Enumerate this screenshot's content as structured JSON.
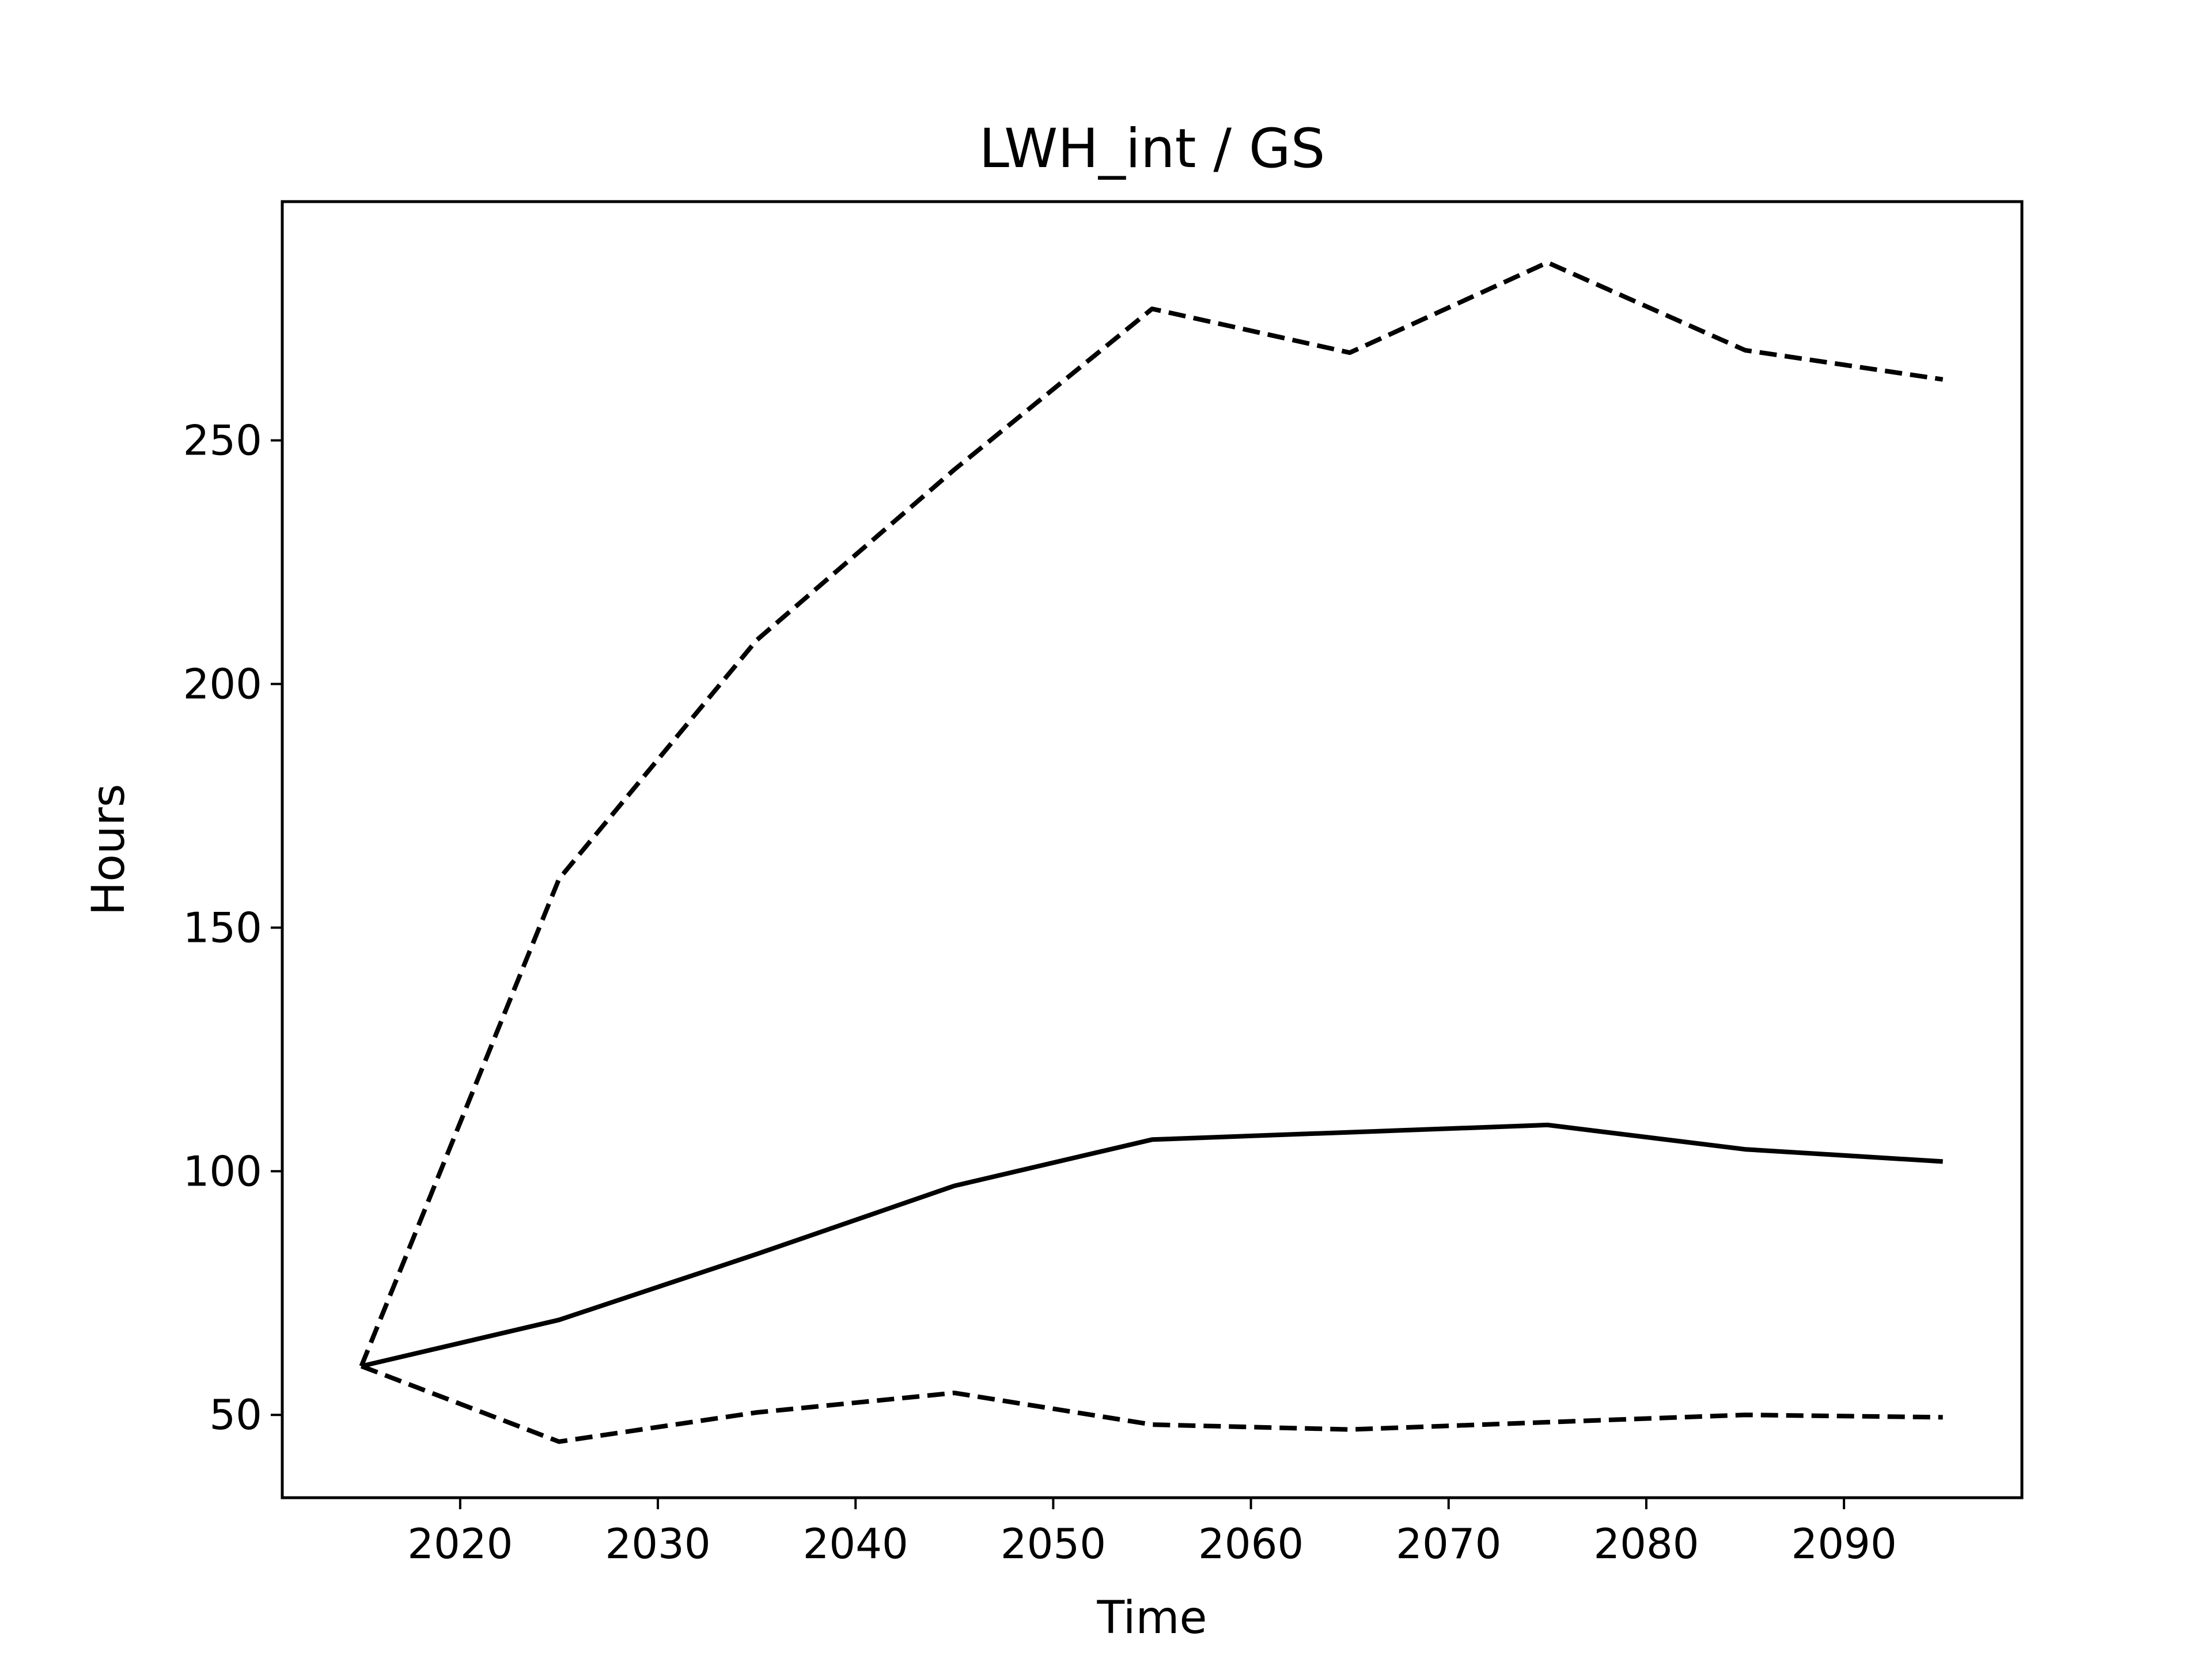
{
  "chart_data": {
    "type": "line",
    "title": "LWH_int / GS",
    "xlabel": "Time",
    "ylabel": "Hours",
    "xlim": [
      2011,
      2099
    ],
    "ylim": [
      33,
      299
    ],
    "xticks": [
      2020,
      2030,
      2040,
      2050,
      2060,
      2070,
      2080,
      2090
    ],
    "yticks": [
      50,
      100,
      150,
      200,
      250
    ],
    "grid": false,
    "legend": "none",
    "x": [
      2015,
      2025,
      2035,
      2045,
      2055,
      2065,
      2075,
      2085,
      2095
    ],
    "series": [
      {
        "style": "solid",
        "color": "#000000",
        "values": [
          60,
          69.5,
          83,
          97,
          106.5,
          108,
          109.5,
          104.5,
          102
        ]
      },
      {
        "style": "dashed",
        "color": "#000000",
        "values": [
          60,
          160,
          209,
          244,
          277,
          268,
          286.5,
          268.5,
          262.5
        ]
      },
      {
        "style": "dashed",
        "color": "#000000",
        "values": [
          60,
          44.5,
          50.5,
          54.5,
          48,
          47,
          48.5,
          50,
          49.5
        ]
      }
    ]
  }
}
